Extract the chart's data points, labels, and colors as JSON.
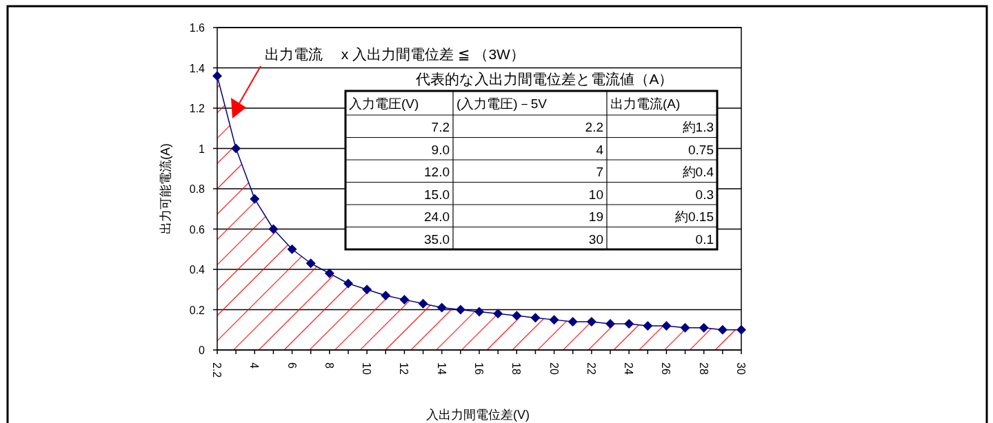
{
  "chart_data": [
    {
      "type": "area",
      "xlabel": "入出力間電位差(V)",
      "ylabel": "出力可能電流(A)",
      "categories": [
        "2.2",
        null,
        "4",
        null,
        "6",
        null,
        "8",
        null,
        "10",
        null,
        "12",
        null,
        "14",
        null,
        "16",
        null,
        "18",
        null,
        "20",
        null,
        "22",
        null,
        "24",
        null,
        "26",
        null,
        "28",
        null,
        "30"
      ],
      "series": [
        {
          "color": "#000080",
          "values": [
            1.36,
            1.0,
            0.75,
            0.6,
            0.5,
            0.43,
            0.38,
            0.33,
            0.3,
            0.27,
            0.25,
            0.23,
            0.21,
            0.2,
            0.19,
            0.18,
            0.17,
            0.16,
            0.15,
            0.14,
            0.14,
            0.13,
            0.13,
            0.12,
            0.12,
            0.11,
            0.11,
            0.1,
            0.1
          ]
        }
      ],
      "ylim": [
        0,
        1.6
      ],
      "yticks": [
        0,
        0.2,
        0.4,
        0.6,
        0.8,
        1,
        1.2,
        1.4,
        1.6
      ],
      "grid": "y",
      "marker": "diamond",
      "annotations": [
        "出力電流　 x 入出力間電位差 ≦ （3W）"
      ]
    },
    {
      "type": "other",
      "title": "代表的な入出力間電位差と電流値（A）",
      "annotations": [
        "入力電圧(V)",
        "(入力電圧)－5V",
        "出力電流(A)",
        "7.2",
        "2.2",
        "約1.3",
        "9.0",
        "4",
        "0.75",
        "12.0",
        "7",
        "約0.4",
        "15.0",
        "10",
        "0.3",
        "24.0",
        "19",
        "約0.15",
        "35.0",
        "30",
        "0.1"
      ]
    }
  ]
}
